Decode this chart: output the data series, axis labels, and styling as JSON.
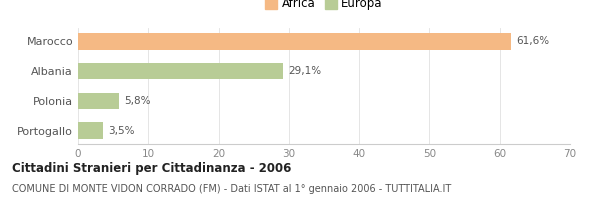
{
  "categories": [
    "Marocco",
    "Albania",
    "Polonia",
    "Portogallo"
  ],
  "values": [
    61.6,
    29.1,
    5.8,
    3.5
  ],
  "labels": [
    "61,6%",
    "29,1%",
    "5,8%",
    "3,5%"
  ],
  "colors": [
    "#f5b984",
    "#b8cc96",
    "#b8cc96",
    "#b8cc96"
  ],
  "legend": [
    {
      "label": "Africa",
      "color": "#f5b984"
    },
    {
      "label": "Europa",
      "color": "#b8cc96"
    }
  ],
  "xlim": [
    0,
    70
  ],
  "xticks": [
    0,
    10,
    20,
    30,
    40,
    50,
    60,
    70
  ],
  "title": "Cittadini Stranieri per Cittadinanza - 2006",
  "subtitle": "COMUNE DI MONTE VIDON CORRADO (FM) - Dati ISTAT al 1° gennaio 2006 - TUTTITALIA.IT",
  "bg_color": "#ffffff",
  "bar_height": 0.55
}
